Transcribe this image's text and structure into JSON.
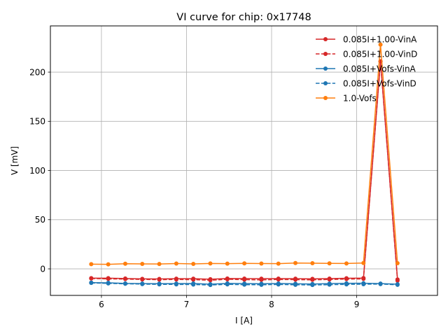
{
  "chart_data": {
    "type": "line",
    "title": "VI curve for chip: 0x17748",
    "xlabel": "I [A]",
    "ylabel": "V [mV]",
    "xlim": [
      5.4,
      9.95
    ],
    "ylim": [
      -27,
      247
    ],
    "xticks": [
      6,
      7,
      8,
      9
    ],
    "yticks": [
      0,
      50,
      100,
      150,
      200
    ],
    "grid": true,
    "legend_placement": "top-right",
    "x": [
      5.88,
      6.08,
      6.28,
      6.48,
      6.68,
      6.88,
      7.08,
      7.28,
      7.48,
      7.68,
      7.88,
      8.08,
      8.28,
      8.48,
      8.68,
      8.88,
      9.08,
      9.28,
      9.48
    ],
    "series": [
      {
        "name": "0.085I+1.00-VinA",
        "color": "#d62728",
        "dashed": false,
        "values": [
          -9.5,
          -9.5,
          -9.8,
          -10.2,
          -10.3,
          -10.0,
          -10.0,
          -10.5,
          -9.8,
          -9.9,
          -10.0,
          -9.9,
          -10.0,
          -10.2,
          -9.9,
          -9.6,
          -9.4,
          211.0,
          -10.8
        ]
      },
      {
        "name": "0.085I+1.00-VinD",
        "color": "#d62728",
        "dashed": true,
        "values": [
          -9.8,
          -10.2,
          -10.4,
          -10.8,
          -11.0,
          -10.8,
          -11.0,
          -11.6,
          -10.6,
          -11.0,
          -11.2,
          -10.8,
          -11.0,
          -11.2,
          -10.8,
          -10.4,
          -10.2,
          211.0,
          -12.0
        ]
      },
      {
        "name": "0.085I+Vofs-VinA",
        "color": "#1f77b4",
        "dashed": false,
        "values": [
          -14.0,
          -14.2,
          -14.8,
          -15.0,
          -15.1,
          -15.0,
          -14.9,
          -15.6,
          -14.8,
          -15.0,
          -15.2,
          -14.9,
          -15.2,
          -15.4,
          -15.0,
          -14.7,
          -14.6,
          -15.0,
          -15.6
        ]
      },
      {
        "name": "0.085I+Vofs-VinD",
        "color": "#1f77b4",
        "dashed": true,
        "values": [
          -14.3,
          -14.8,
          -15.2,
          -15.5,
          -15.8,
          -15.8,
          -16.0,
          -16.4,
          -15.8,
          -16.1,
          -16.2,
          -15.9,
          -16.2,
          -16.4,
          -16.1,
          -15.8,
          -15.6,
          -15.5,
          -16.2
        ]
      },
      {
        "name": "1.0-Vofs",
        "color": "#ff7f0e",
        "dashed": false,
        "values": [
          4.8,
          4.6,
          5.2,
          5.0,
          4.9,
          5.4,
          5.0,
          5.5,
          5.3,
          5.6,
          5.4,
          5.3,
          5.9,
          5.7,
          5.6,
          5.5,
          5.9,
          228.0,
          5.7
        ]
      }
    ]
  }
}
